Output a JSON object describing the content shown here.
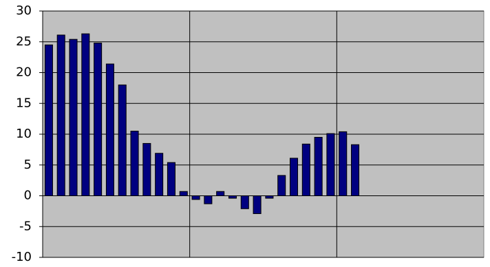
{
  "chart_data": {
    "type": "bar",
    "categories": [
      null,
      null,
      null,
      null,
      null,
      null,
      null,
      null,
      null,
      null,
      null,
      null,
      null,
      null,
      null,
      null,
      null,
      null,
      null,
      null,
      null,
      null,
      null,
      null,
      null,
      null,
      null,
      null,
      null,
      null,
      null,
      null,
      null,
      null,
      null,
      null
    ],
    "values": [
      24.5,
      26.1,
      25.4,
      26.3,
      24.8,
      21.4,
      18.0,
      10.5,
      8.5,
      6.9,
      5.4,
      0.7,
      -0.6,
      -1.3,
      0.7,
      -0.4,
      -2.1,
      -2.9,
      -0.4,
      3.3,
      6.1,
      8.4,
      9.5,
      10.1,
      10.4,
      8.3,
      null,
      null,
      null,
      null,
      null,
      null,
      null,
      null,
      null,
      null
    ],
    "color": "#000080",
    "ylim": [
      -10,
      30
    ],
    "yticks": [
      -10,
      -5,
      0,
      5,
      10,
      15,
      20,
      25,
      30
    ],
    "grid": true
  }
}
